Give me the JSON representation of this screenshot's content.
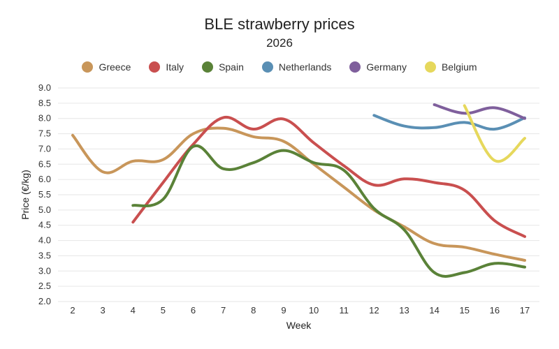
{
  "chart_data": {
    "type": "line",
    "title": "BLE strawberry prices",
    "subtitle": "2026",
    "xlabel": "Week",
    "ylabel": "Price (€/kg)",
    "x": [
      2,
      3,
      4,
      5,
      6,
      7,
      8,
      9,
      10,
      11,
      12,
      13,
      14,
      15,
      16,
      17
    ],
    "xlim": [
      2,
      17
    ],
    "ylim": [
      2.0,
      9.0
    ],
    "yticks": [
      "2.0",
      "2.5",
      "3.0",
      "3.5",
      "4.0",
      "4.5",
      "5.0",
      "5.5",
      "6.0",
      "6.5",
      "7.0",
      "7.5",
      "8.0",
      "8.5",
      "9.0"
    ],
    "grid": true,
    "legend_position": "top",
    "series": [
      {
        "name": "Greece",
        "color": "#c8965a",
        "points": [
          [
            2,
            7.45
          ],
          [
            3,
            6.25
          ],
          [
            4,
            6.6
          ],
          [
            5,
            6.65
          ],
          [
            6,
            7.5
          ],
          [
            7,
            7.68
          ],
          [
            8,
            7.4
          ],
          [
            9,
            7.25
          ],
          [
            10,
            6.5
          ],
          [
            11,
            5.75
          ],
          [
            12,
            5.0
          ],
          [
            13,
            4.45
          ],
          [
            14,
            3.9
          ],
          [
            15,
            3.78
          ],
          [
            16,
            3.55
          ],
          [
            17,
            3.35
          ]
        ]
      },
      {
        "name": "Italy",
        "color": "#c94f4f",
        "points": [
          [
            4,
            4.6
          ],
          [
            5,
            5.9
          ],
          [
            6,
            7.15
          ],
          [
            7,
            8.03
          ],
          [
            8,
            7.65
          ],
          [
            9,
            7.98
          ],
          [
            10,
            7.2
          ],
          [
            11,
            6.45
          ],
          [
            12,
            5.82
          ],
          [
            13,
            6.02
          ],
          [
            14,
            5.9
          ],
          [
            15,
            5.65
          ],
          [
            16,
            4.65
          ],
          [
            17,
            4.13
          ]
        ]
      },
      {
        "name": "Spain",
        "color": "#5a8238",
        "points": [
          [
            4,
            5.15
          ],
          [
            5,
            5.35
          ],
          [
            6,
            7.08
          ],
          [
            7,
            6.35
          ],
          [
            8,
            6.55
          ],
          [
            9,
            6.95
          ],
          [
            10,
            6.55
          ],
          [
            11,
            6.3
          ],
          [
            12,
            5.05
          ],
          [
            13,
            4.35
          ],
          [
            14,
            2.95
          ],
          [
            15,
            2.95
          ],
          [
            16,
            3.25
          ],
          [
            17,
            3.13
          ]
        ]
      },
      {
        "name": "Netherlands",
        "color": "#5a8fb4",
        "points": [
          [
            12,
            8.1
          ],
          [
            13,
            7.75
          ],
          [
            14,
            7.7
          ],
          [
            15,
            7.87
          ],
          [
            16,
            7.65
          ],
          [
            17,
            8.02
          ]
        ]
      },
      {
        "name": "Germany",
        "color": "#7f5f9c",
        "points": [
          [
            14,
            8.45
          ],
          [
            15,
            8.17
          ],
          [
            16,
            8.35
          ],
          [
            17,
            8.0
          ]
        ]
      },
      {
        "name": "Belgium",
        "color": "#e6d85c",
        "points": [
          [
            15,
            8.42
          ],
          [
            16,
            6.62
          ],
          [
            17,
            7.35
          ]
        ]
      }
    ]
  }
}
